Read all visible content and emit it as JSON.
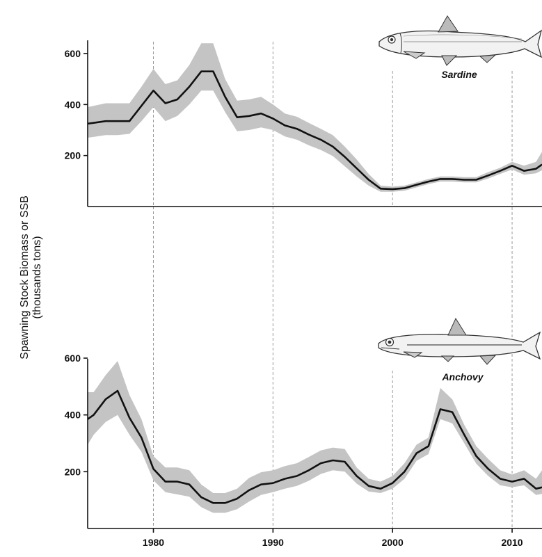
{
  "ylabel_line1": "Spawning Stock Biomass or SSB",
  "ylabel_line2": "(thousands tons)",
  "x_ticks": [
    "1980",
    "1990",
    "2000",
    "2010"
  ],
  "chart_data": [
    {
      "type": "area",
      "species": "Sardine",
      "xlim": [
        1974.5,
        2012.5
      ],
      "ylim": [
        0,
        640
      ],
      "y_ticks": [
        "200",
        "400",
        "600"
      ],
      "x_ticks": [
        "1980",
        "1990",
        "2000",
        "2010"
      ],
      "vgrid": [
        1980,
        1990,
        2000,
        2010
      ],
      "series": [
        {
          "x": [
            1974.5,
            1975,
            1976,
            1977,
            1978,
            1979,
            1980,
            1981,
            1982,
            1983,
            1984,
            1985,
            1986,
            1987,
            1988,
            1989,
            1990,
            1991,
            1992,
            1993,
            1994,
            1995,
            1996,
            1997,
            1998,
            1999,
            2000,
            2001,
            2002,
            2003,
            2004,
            2005,
            2006,
            2007,
            2008,
            2009,
            2010,
            2011,
            2012,
            2012.5
          ],
          "mean": [
            325,
            328,
            335,
            335,
            335,
            395,
            455,
            405,
            420,
            470,
            530,
            530,
            430,
            350,
            355,
            365,
            345,
            318,
            305,
            282,
            262,
            235,
            195,
            150,
            105,
            70,
            68,
            72,
            85,
            98,
            108,
            108,
            105,
            105,
            122,
            140,
            160,
            140,
            148,
            165
          ],
          "lower": [
            270,
            273,
            280,
            280,
            285,
            335,
            390,
            335,
            355,
            400,
            455,
            455,
            370,
            295,
            300,
            310,
            300,
            275,
            262,
            240,
            222,
            198,
            158,
            118,
            82,
            58,
            58,
            62,
            75,
            88,
            98,
            98,
            95,
            95,
            110,
            128,
            145,
            125,
            130,
            142
          ],
          "upper": [
            390,
            395,
            405,
            405,
            405,
            470,
            540,
            480,
            495,
            555,
            640,
            640,
            500,
            415,
            420,
            430,
            400,
            365,
            352,
            328,
            305,
            280,
            235,
            185,
            128,
            82,
            78,
            82,
            95,
            108,
            118,
            118,
            115,
            115,
            135,
            152,
            175,
            160,
            175,
            215
          ]
        }
      ]
    },
    {
      "type": "area",
      "species": "Anchovy",
      "xlim": [
        1974.5,
        2012.5
      ],
      "ylim": [
        0,
        640
      ],
      "y_ticks": [
        "200",
        "400",
        "600"
      ],
      "x_ticks": [
        "1980",
        "1990",
        "2000",
        "2010"
      ],
      "vgrid": [
        1980,
        1990,
        2000,
        2010
      ],
      "series": [
        {
          "x": [
            1974.5,
            1975,
            1976,
            1977,
            1978,
            1979,
            1980,
            1981,
            1982,
            1983,
            1984,
            1985,
            1986,
            1987,
            1988,
            1989,
            1990,
            1991,
            1992,
            1993,
            1994,
            1995,
            1996,
            1997,
            1998,
            1999,
            2000,
            2001,
            2002,
            2003,
            2004,
            2005,
            2006,
            2007,
            2008,
            2009,
            2010,
            2011,
            2012,
            2012.5
          ],
          "mean": [
            385,
            400,
            455,
            485,
            390,
            320,
            210,
            165,
            165,
            155,
            110,
            90,
            90,
            105,
            135,
            155,
            160,
            175,
            185,
            205,
            230,
            240,
            235,
            185,
            150,
            140,
            160,
            200,
            265,
            290,
            420,
            410,
            330,
            255,
            210,
            175,
            165,
            175,
            140,
            145
          ],
          "lower": [
            295,
            330,
            375,
            400,
            330,
            270,
            170,
            128,
            120,
            112,
            75,
            55,
            55,
            68,
            95,
            118,
            128,
            140,
            150,
            168,
            192,
            205,
            200,
            158,
            130,
            125,
            140,
            175,
            238,
            262,
            385,
            370,
            300,
            228,
            185,
            152,
            145,
            152,
            118,
            122
          ],
          "upper": [
            480,
            480,
            540,
            590,
            470,
            385,
            255,
            215,
            215,
            205,
            155,
            125,
            125,
            140,
            178,
            198,
            205,
            220,
            230,
            252,
            275,
            285,
            280,
            215,
            175,
            165,
            185,
            230,
            295,
            320,
            495,
            455,
            365,
            290,
            245,
            205,
            190,
            205,
            175,
            205
          ]
        }
      ]
    }
  ]
}
